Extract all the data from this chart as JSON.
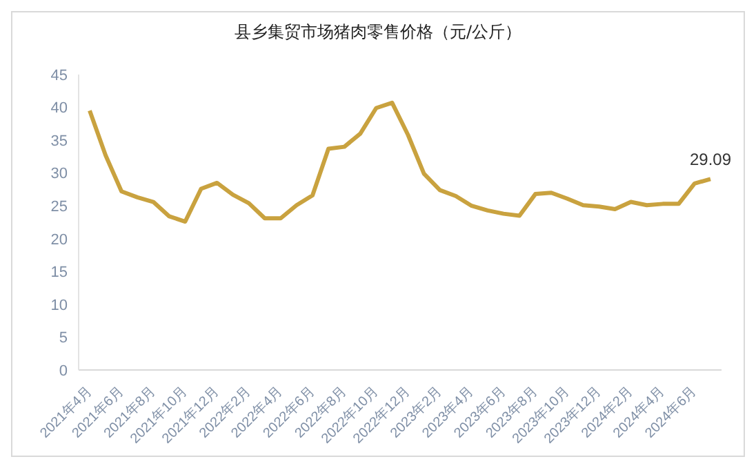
{
  "chart_data": {
    "type": "line",
    "title": "县乡集贸市场猪肉零售价格（元/公斤）",
    "categories": [
      "2021年4月",
      null,
      "2021年6月",
      null,
      "2021年8月",
      null,
      "2021年10月",
      null,
      "2021年12月",
      null,
      "2022年2月",
      null,
      "2022年4月",
      null,
      "2022年6月",
      null,
      "2022年8月",
      null,
      "2022年10月",
      null,
      "2022年12月",
      null,
      "2023年2月",
      null,
      "2023年4月",
      null,
      "2023年6月",
      null,
      "2023年8月",
      null,
      "2023年10月",
      null,
      "2023年12月",
      null,
      "2024年2月",
      null,
      "2024年4月",
      null,
      "2024年6月",
      null
    ],
    "series": [
      {
        "color": "#c9a23f",
        "values": [
          39.5,
          32.7,
          27.2,
          26.3,
          25.6,
          23.4,
          22.6,
          27.6,
          28.5,
          26.7,
          25.4,
          23.1,
          23.1,
          25.1,
          26.6,
          33.7,
          34.0,
          36.0,
          39.9,
          40.7,
          35.8,
          29.9,
          27.4,
          26.5,
          25.0,
          24.3,
          23.8,
          23.5,
          26.8,
          27.0,
          26.1,
          25.1,
          24.9,
          24.5,
          25.6,
          25.1,
          25.3,
          25.3,
          28.4,
          29.09
        ],
        "value_labels": [
          null,
          null,
          null,
          null,
          null,
          null,
          null,
          null,
          null,
          null,
          null,
          null,
          null,
          null,
          null,
          null,
          null,
          null,
          null,
          null,
          null,
          null,
          null,
          null,
          null,
          null,
          null,
          null,
          null,
          null,
          null,
          null,
          null,
          null,
          null,
          null,
          null,
          null,
          null,
          "29.09"
        ]
      }
    ],
    "ylim": [
      0,
      45
    ],
    "yticks": [
      0,
      5,
      10,
      15,
      20,
      25,
      30,
      35,
      40,
      45
    ],
    "grid": false,
    "legend": false,
    "marker": "none",
    "line_style": "solid"
  }
}
